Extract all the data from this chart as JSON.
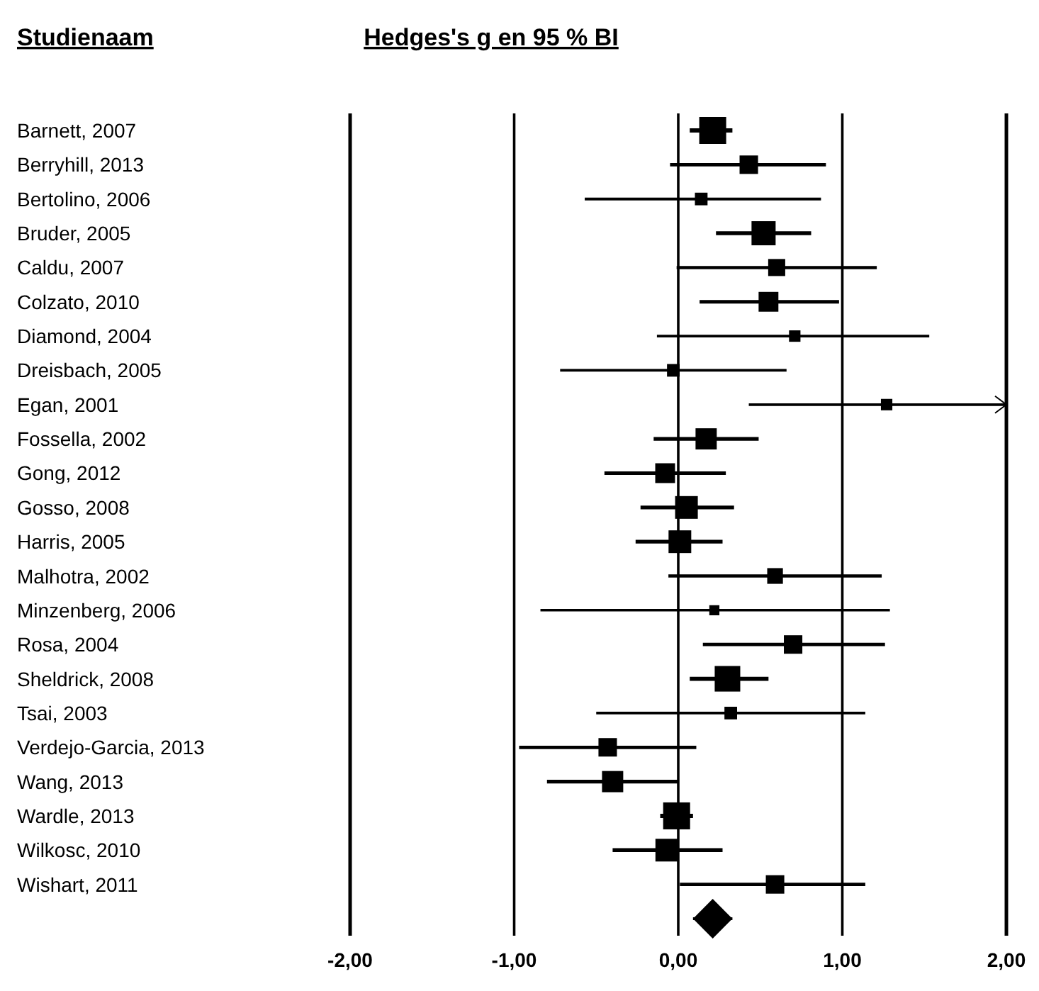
{
  "chart_data": {
    "type": "bubble",
    "orientation": "horizontal",
    "title": "Hedges's g en 95 % BI",
    "ylabel": "Studienaam",
    "categories": [
      "Barnett, 2007",
      "Berryhill, 2013",
      "Bertolino, 2006",
      "Bruder, 2005",
      "Caldu, 2007",
      "Colzato, 2010",
      "Diamond, 2004",
      "Dreisbach, 2005",
      "Egan, 2001",
      "Fossella, 2002",
      "Gong, 2012",
      "Gosso, 2008",
      "Harris, 2005",
      "Malhotra, 2002",
      "Minzenberg, 2006",
      "Rosa, 2004",
      "Sheldrick, 2008",
      "Tsai, 2003",
      "Verdejo-Garcia, 2013",
      "Wang, 2013",
      "Wardle, 2013",
      "Wilkosc, 2010",
      "Wishart, 2011",
      null
    ],
    "series": [
      {
        "marker": "square",
        "color": "#000000",
        "values": [
          0.21,
          0.43,
          0.14,
          0.52,
          0.6,
          0.55,
          0.71,
          -0.03,
          1.27,
          0.17,
          -0.08,
          0.05,
          0.01,
          0.59,
          0.22,
          0.7,
          0.3,
          0.32,
          -0.43,
          -0.4,
          -0.01,
          -0.07,
          0.59,
          null
        ],
        "sizes": [
          1,
          0.47,
          0.22,
          0.8,
          0.4,
          0.54,
          0.18,
          0.22,
          0.18,
          0.62,
          0.54,
          0.71,
          0.71,
          0.34,
          0.14,
          0.47,
          0.9,
          0.22,
          0.47,
          0.62,
          1,
          0.71,
          0.47,
          null
        ],
        "errors": [
          [
            0.07,
            0.33
          ],
          [
            -0.05,
            0.9
          ],
          [
            -0.57,
            0.87
          ],
          [
            0.23,
            0.81
          ],
          [
            -0.01,
            1.21
          ],
          [
            0.13,
            0.98
          ],
          [
            -0.13,
            1.53
          ],
          [
            -0.72,
            0.66
          ],
          [
            0.43,
            2.0
          ],
          [
            -0.15,
            0.49
          ],
          [
            -0.45,
            0.29
          ],
          [
            -0.23,
            0.34
          ],
          [
            -0.26,
            0.27
          ],
          [
            -0.06,
            1.24
          ],
          [
            -0.84,
            1.29
          ],
          [
            0.15,
            1.26
          ],
          [
            0.07,
            0.55
          ],
          [
            -0.5,
            1.14
          ],
          [
            -0.97,
            0.11
          ],
          [
            -0.8,
            0.0
          ],
          [
            -0.11,
            0.09
          ],
          [
            -0.4,
            0.27
          ],
          [
            0.01,
            1.14
          ],
          null
        ]
      },
      {
        "type": "scatter",
        "marker": "diamond",
        "color": "#000000",
        "values": [
          null,
          null,
          null,
          null,
          null,
          null,
          null,
          null,
          null,
          null,
          null,
          null,
          null,
          null,
          null,
          null,
          null,
          null,
          null,
          null,
          null,
          null,
          null,
          0.21
        ],
        "errors": [
          null,
          null,
          null,
          null,
          null,
          null,
          null,
          null,
          null,
          null,
          null,
          null,
          null,
          null,
          null,
          null,
          null,
          null,
          null,
          null,
          null,
          null,
          null,
          [
            0.09,
            0.33
          ]
        ]
      }
    ],
    "xlim": [
      -2.0,
      2.0
    ],
    "xticks": [
      {
        "value": -2,
        "label": "-2,00"
      },
      {
        "value": -1,
        "label": "-1,00"
      },
      {
        "value": 0,
        "label": "0,00"
      },
      {
        "value": 1,
        "label": "1,00"
      },
      {
        "value": 2,
        "label": "2,00"
      }
    ],
    "grid": "x"
  }
}
